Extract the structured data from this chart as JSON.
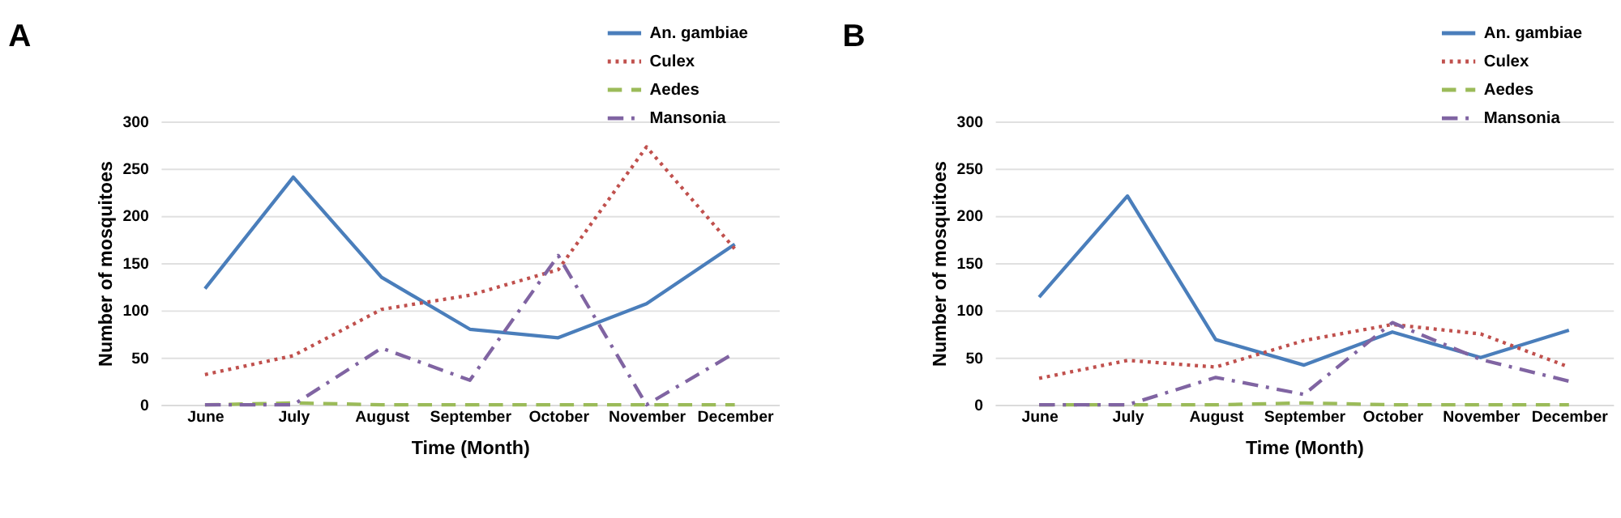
{
  "chart_data": [
    {
      "type": "line",
      "title": "A",
      "xlabel": "Time (Month)",
      "ylabel": "Number of mosquitoes",
      "categories": [
        "June",
        "July",
        "August",
        "September",
        "October",
        "November",
        "December"
      ],
      "ylim": [
        0,
        300
      ],
      "yticks": [
        0,
        50,
        100,
        150,
        200,
        250,
        300
      ],
      "grid": "y",
      "legend": "top right",
      "marker": "none",
      "series": [
        {
          "name": "An. gambiae",
          "color": "#4a7ebb",
          "line_style": "solid",
          "values": [
            123,
            241,
            135,
            80,
            71,
            107,
            170
          ]
        },
        {
          "name": "Culex",
          "color": "#c0504d",
          "line_style": "dotted",
          "values": [
            32,
            52,
            101,
            116,
            143,
            273,
            165
          ]
        },
        {
          "name": "Aedes",
          "color": "#9bbb59",
          "line_style": "dashed",
          "values": [
            0,
            2,
            0,
            0,
            0,
            0,
            0
          ]
        },
        {
          "name": "Mansonia",
          "color": "#8064a2",
          "line_style": "dashdot",
          "values": [
            0,
            0,
            60,
            26,
            158,
            0,
            55
          ]
        }
      ]
    },
    {
      "type": "line",
      "title": "B",
      "xlabel": "Time (Month)",
      "ylabel": "Number of mosquitoes",
      "categories": [
        "June",
        "July",
        "August",
        "September",
        "October",
        "November",
        "December"
      ],
      "ylim": [
        0,
        300
      ],
      "yticks": [
        0,
        50,
        100,
        150,
        200,
        250,
        300
      ],
      "grid": "y",
      "legend": "top right",
      "marker": "none",
      "series": [
        {
          "name": "An. gambiae",
          "color": "#4a7ebb",
          "line_style": "solid",
          "values": [
            114,
            221,
            69,
            42,
            77,
            50,
            79
          ]
        },
        {
          "name": "Culex",
          "color": "#c0504d",
          "line_style": "dotted",
          "values": [
            28,
            47,
            40,
            68,
            85,
            75,
            40
          ]
        },
        {
          "name": "Aedes",
          "color": "#9bbb59",
          "line_style": "dashed",
          "values": [
            0,
            0,
            0,
            2,
            0,
            0,
            0
          ]
        },
        {
          "name": "Mansonia",
          "color": "#8064a2",
          "line_style": "dashdot",
          "values": [
            0,
            0,
            29,
            11,
            87,
            48,
            25
          ]
        }
      ]
    }
  ]
}
